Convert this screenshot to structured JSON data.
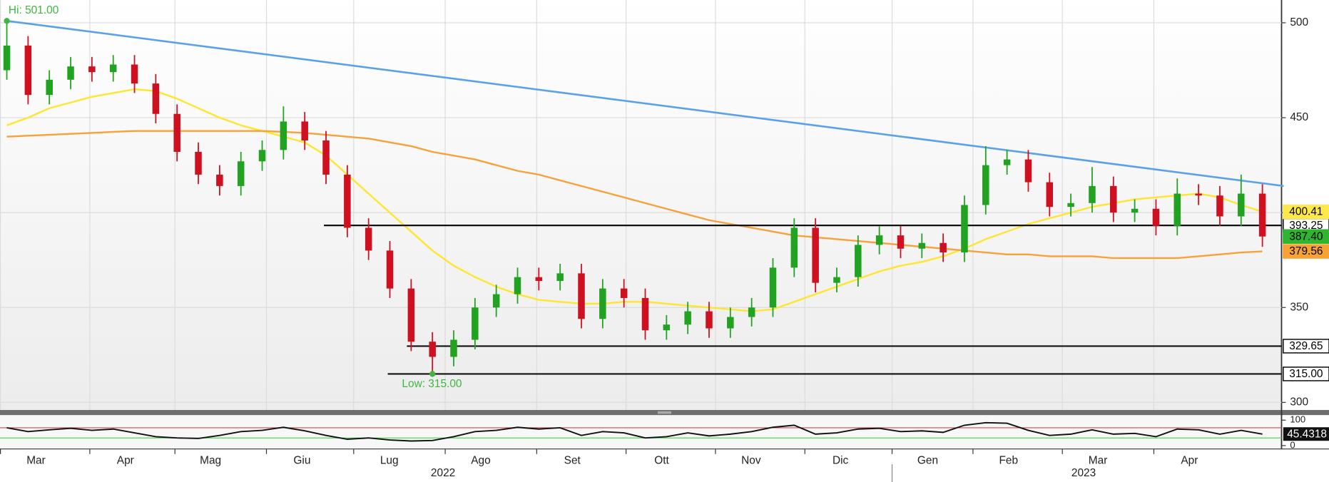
{
  "chart_data": {
    "type": "candlestick",
    "xlim": [
      -0.32,
      59.9
    ],
    "ylim": [
      296,
      512
    ],
    "yticks": [
      300,
      350,
      400,
      450,
      500
    ],
    "grid": true,
    "xticks": [
      {
        "value": -0.3,
        "label": "Mar"
      },
      {
        "value": 3.9,
        "label": "Apr"
      },
      {
        "value": 7.9,
        "label": "Mag"
      },
      {
        "value": 12.2,
        "label": "Giu"
      },
      {
        "value": 16.3,
        "label": "Lug"
      },
      {
        "value": 20.6,
        "label": "Ago"
      },
      {
        "value": 24.9,
        "label": "Set"
      },
      {
        "value": 29.1,
        "label": "Ott"
      },
      {
        "value": 33.3,
        "label": "Nov"
      },
      {
        "value": 37.5,
        "label": "Dic"
      },
      {
        "value": 41.6,
        "label": "Gen"
      },
      {
        "value": 45.4,
        "label": "Feb"
      },
      {
        "value": 49.6,
        "label": "Mar"
      },
      {
        "value": 53.9,
        "label": "Apr"
      }
    ],
    "years": [
      {
        "value": 20.5,
        "label": "2022"
      },
      {
        "value": 50.6,
        "label": "2023"
      }
    ],
    "open": [
      475,
      488,
      462,
      470,
      477,
      474,
      478,
      468,
      452,
      432,
      420,
      414,
      427,
      433,
      448,
      438,
      420,
      392,
      380,
      360,
      332,
      324,
      333,
      350,
      357,
      366,
      364,
      368,
      344,
      360,
      355,
      338,
      341,
      348,
      339,
      345,
      350,
      371,
      392,
      363,
      366,
      383,
      388,
      381,
      384,
      379,
      404,
      425,
      428,
      416,
      403,
      405,
      414,
      400,
      402,
      393,
      410,
      409,
      398,
      410
    ],
    "high": [
      501,
      493,
      475,
      482,
      482,
      483,
      483,
      473,
      457,
      437,
      425,
      432,
      438,
      456,
      453,
      443,
      425,
      397,
      385,
      365,
      337,
      338,
      355,
      362,
      371,
      371,
      373,
      373,
      365,
      365,
      360,
      346,
      353,
      353,
      350,
      355,
      376,
      397,
      397,
      371,
      388,
      393,
      393,
      389,
      389,
      409,
      435,
      433,
      433,
      421,
      410,
      424,
      419,
      407,
      407,
      418,
      415,
      414,
      420,
      415
    ],
    "low": [
      470,
      457,
      457,
      465,
      469,
      469,
      463,
      447,
      427,
      415,
      409,
      409,
      422,
      428,
      433,
      415,
      387,
      375,
      355,
      327,
      315,
      319,
      328,
      345,
      352,
      359,
      359,
      339,
      339,
      350,
      333,
      333,
      336,
      334,
      334,
      340,
      345,
      366,
      358,
      358,
      361,
      378,
      376,
      376,
      374,
      374,
      399,
      420,
      411,
      398,
      398,
      400,
      395,
      395,
      388,
      388,
      404,
      393,
      393,
      382
    ],
    "close": [
      488,
      462,
      470,
      477,
      474,
      478,
      468,
      452,
      432,
      420,
      414,
      427,
      433,
      448,
      438,
      420,
      392,
      380,
      360,
      332,
      324,
      333,
      350,
      357,
      366,
      364,
      368,
      344,
      360,
      355,
      338,
      341,
      348,
      339,
      345,
      350,
      371,
      392,
      363,
      366,
      383,
      388,
      381,
      384,
      379,
      404,
      425,
      428,
      416,
      403,
      405,
      414,
      400,
      402,
      393,
      410,
      409,
      398,
      410,
      387.4
    ],
    "up_color": "#21a321",
    "down_color": "#cf1020",
    "series": [
      {
        "color": "#ffe52b",
        "values": [
          446,
          450,
          455,
          458,
          461,
          463,
          465,
          464,
          460,
          455,
          450,
          446,
          443,
          440,
          437,
          430,
          420,
          410,
          400,
          390,
          380,
          372,
          366,
          361,
          357,
          354,
          353,
          352,
          352,
          353,
          353,
          352,
          351,
          350,
          349,
          348,
          349,
          353,
          357,
          361,
          365,
          369,
          372,
          374,
          377,
          381,
          386,
          390,
          394,
          397,
          400,
          403,
          405,
          407,
          408,
          409,
          410,
          408,
          404,
          400.41
        ]
      },
      {
        "color": "#f6a139",
        "values": [
          440,
          440.5,
          441,
          441.5,
          442,
          442.5,
          443,
          443,
          443,
          443,
          443,
          443,
          443,
          442.5,
          442,
          441,
          440,
          439,
          437,
          435,
          432,
          430,
          428,
          425,
          422,
          420,
          417,
          414,
          411,
          408,
          405,
          402,
          399,
          396,
          394,
          392,
          390,
          388,
          387,
          386,
          385,
          384,
          383,
          382,
          381,
          380,
          379,
          378,
          378,
          377,
          377,
          377,
          376,
          376,
          376,
          376,
          377,
          378,
          379,
          379.56
        ]
      }
    ],
    "trendline": {
      "color": "#5aa2e8",
      "x": [
        0,
        60
      ],
      "values": [
        501,
        414
      ]
    },
    "levels": [
      {
        "value": 393.25,
        "x": 14.9
      },
      {
        "value": 329.65,
        "x": 18.8
      },
      {
        "value": 315,
        "label": "315.00",
        "x": 17.9
      }
    ],
    "tags": [
      {
        "value": 400.41,
        "color": "#ffe94a"
      },
      {
        "value": 387.4,
        "label": "387.40",
        "color": "#2fb52f"
      },
      {
        "value": 379.56,
        "color": "#f7a334"
      }
    ],
    "annotations": [
      {
        "text": "Hi: 501.00",
        "x": 0,
        "y": 501
      },
      {
        "text": "Low: 315.00",
        "x": 20,
        "y": 315
      }
    ],
    "annotation_color": "#3cb83c",
    "rsi": {
      "ylim": [
        0,
        100
      ],
      "yticks": [
        0,
        100
      ],
      "bands": [
        70,
        30
      ],
      "values": [
        70,
        55,
        62,
        68,
        60,
        65,
        50,
        35,
        30,
        28,
        40,
        55,
        60,
        72,
        58,
        40,
        25,
        30,
        22,
        18,
        20,
        35,
        55,
        60,
        72,
        65,
        70,
        40,
        55,
        50,
        30,
        35,
        50,
        38,
        45,
        55,
        72,
        80,
        45,
        50,
        65,
        68,
        55,
        58,
        52,
        80,
        90,
        88,
        60,
        40,
        45,
        62,
        45,
        48,
        35,
        65,
        62,
        45,
        60,
        45.4318
      ]
    }
  }
}
